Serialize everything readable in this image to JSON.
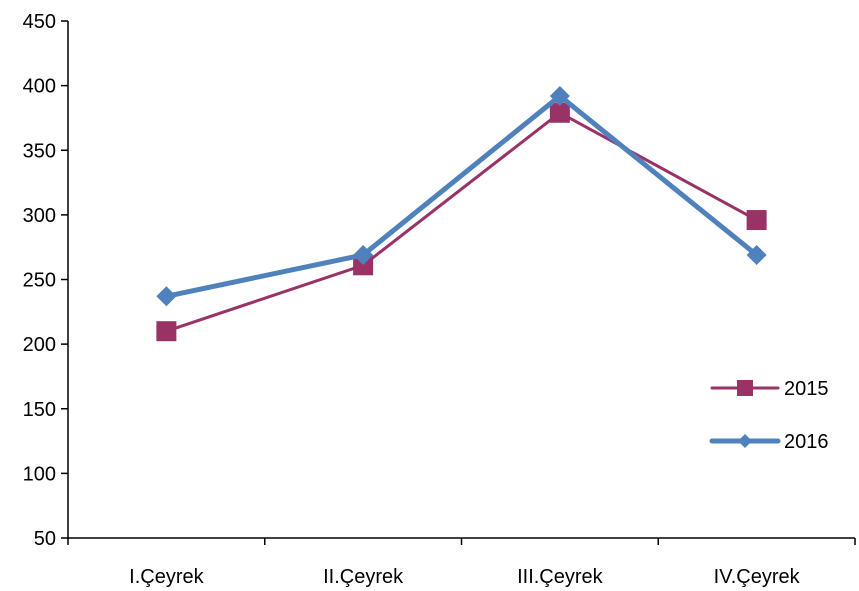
{
  "chart_data": {
    "type": "line",
    "categories": [
      "I.Çeyrek",
      "II.Çeyrek",
      "III.Çeyrek",
      "IV.Çeyrek"
    ],
    "series": [
      {
        "name": "2015",
        "values": [
          210,
          261,
          379,
          296
        ],
        "color": "#993366",
        "marker": "square"
      },
      {
        "name": "2016",
        "values": [
          237,
          269,
          392,
          269
        ],
        "color": "#4f81bd",
        "marker": "diamond"
      }
    ],
    "ylim": [
      50,
      450
    ],
    "yticks": [
      50,
      100,
      150,
      200,
      250,
      300,
      350,
      400,
      450
    ],
    "grid": false,
    "legend": "right"
  }
}
